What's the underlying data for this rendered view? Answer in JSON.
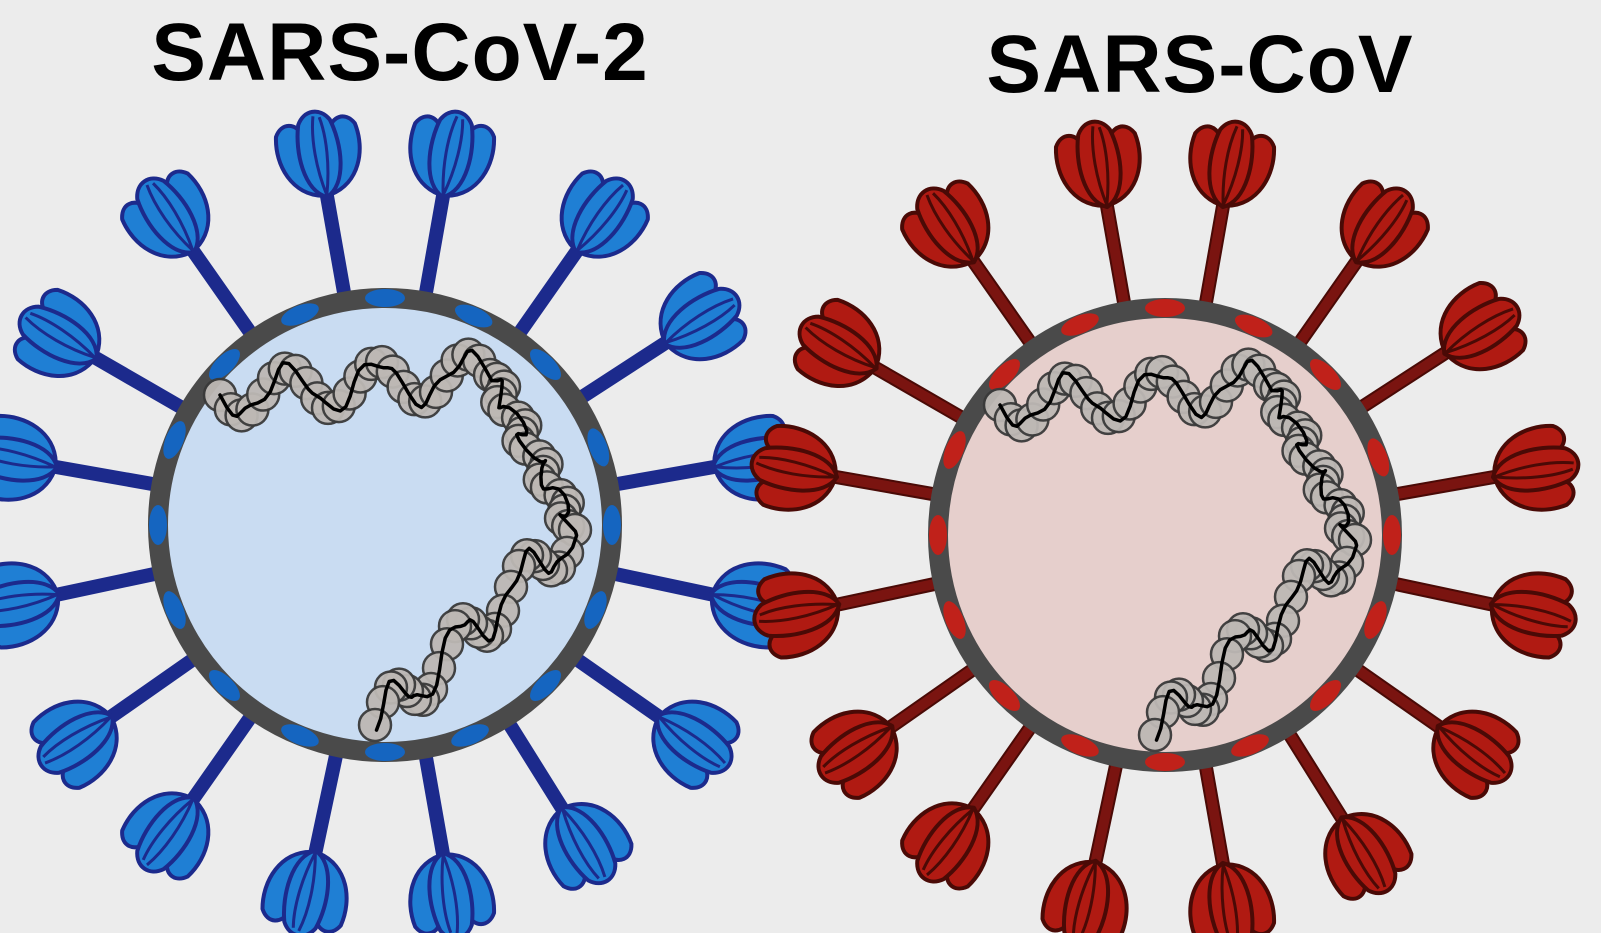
{
  "viruses": [
    {
      "title": "SARS-CoV-2",
      "colors": {
        "spike_fill": "#1f7fd4",
        "spike_stroke": "#1c2a8c",
        "stalk": "#1c2a8c",
        "membrane_protein": "#1565c0",
        "interior": "#c9dcf2"
      }
    },
    {
      "title": "SARS-CoV",
      "colors": {
        "spike_fill": "#b01a12",
        "spike_stroke": "#4a0a06",
        "stalk": "#7a1410",
        "membrane_protein": "#c0211a",
        "interior": "#e6cfcc"
      }
    }
  ],
  "shared_colors": {
    "envelope": "#4a4a4a",
    "nucleocapsid_bead": "#bdb8b4",
    "nucleocapsid_outline": "#3a3a3a",
    "rna_strand": "#000000",
    "background": "#ececec"
  },
  "icons": [
    "spike-protein-icon",
    "membrane-protein-icon",
    "rna-genome-icon"
  ]
}
